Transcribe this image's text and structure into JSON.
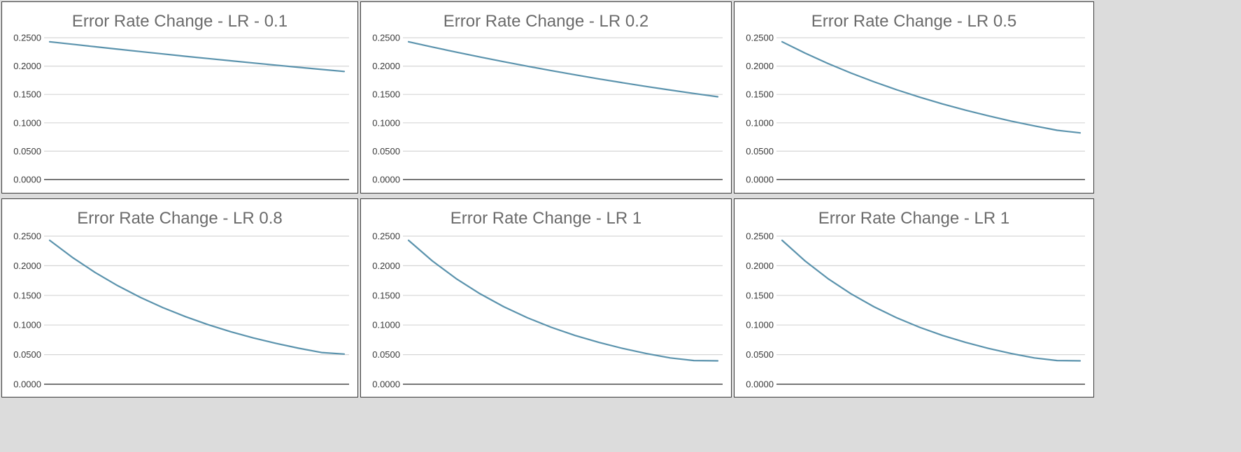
{
  "colors": {
    "series": "#5b93ad",
    "title": "#6b6b6b",
    "axis": "#4a4a4a",
    "grid": "#d6d6d6"
  },
  "chart_data": [
    {
      "type": "line",
      "title": "Error Rate Change - LR - 0.1",
      "xlabel": "",
      "ylabel": "",
      "ylim": [
        0,
        0.25
      ],
      "yticks": [
        "0.0000",
        "0.0500",
        "0.1000",
        "0.1500",
        "0.2000",
        "0.2500"
      ],
      "grid": true,
      "series": [
        {
          "values": [
            0.2429,
            0.2385,
            0.2341,
            0.2298,
            0.2256,
            0.2214,
            0.2173,
            0.2133,
            0.2093,
            0.2054,
            0.2016,
            0.1978,
            0.1941,
            0.1905
          ]
        }
      ]
    },
    {
      "type": "line",
      "title": "Error Rate Change - LR 0.2",
      "xlabel": "",
      "ylabel": "",
      "ylim": [
        0,
        0.25
      ],
      "yticks": [
        "0.0000",
        "0.0500",
        "0.1000",
        "0.1500",
        "0.2000",
        "0.2500"
      ],
      "grid": true,
      "series": [
        {
          "values": [
            0.2429,
            0.2336,
            0.2246,
            0.216,
            0.2077,
            0.1997,
            0.192,
            0.1846,
            0.1775,
            0.1707,
            0.1641,
            0.1578,
            0.1517,
            0.1459
          ]
        }
      ]
    },
    {
      "type": "line",
      "title": "Error Rate Change - LR 0.5",
      "xlabel": "",
      "ylabel": "",
      "ylim": [
        0,
        0.25
      ],
      "yticks": [
        "0.0000",
        "0.0500",
        "0.1000",
        "0.1500",
        "0.2000",
        "0.2500"
      ],
      "grid": true,
      "series": [
        {
          "values": [
            0.2429,
            0.2229,
            0.2046,
            0.1878,
            0.1724,
            0.1582,
            0.1452,
            0.1333,
            0.1223,
            0.1123,
            0.103,
            0.0946,
            0.0868,
            0.0823
          ]
        }
      ]
    },
    {
      "type": "line",
      "title": "Error Rate Change - LR 0.8",
      "xlabel": "",
      "ylabel": "",
      "ylim": [
        0,
        0.25
      ],
      "yticks": [
        "0.0000",
        "0.0500",
        "0.1000",
        "0.1500",
        "0.2000",
        "0.2500"
      ],
      "grid": true,
      "series": [
        {
          "values": [
            0.2429,
            0.2141,
            0.1888,
            0.1664,
            0.1467,
            0.1293,
            0.114,
            0.1005,
            0.0886,
            0.0781,
            0.0689,
            0.0607,
            0.0535,
            0.051
          ]
        }
      ]
    },
    {
      "type": "line",
      "title": "Error Rate Change - LR 1",
      "xlabel": "",
      "ylabel": "",
      "ylim": [
        0,
        0.25
      ],
      "yticks": [
        "0.0000",
        "0.0500",
        "0.1000",
        "0.1500",
        "0.2000",
        "0.2500"
      ],
      "grid": true,
      "series": [
        {
          "values": [
            0.2429,
            0.2081,
            0.1783,
            0.1528,
            0.1309,
            0.1122,
            0.0961,
            0.0823,
            0.0706,
            0.0605,
            0.0518,
            0.0444,
            0.04,
            0.0395
          ]
        }
      ]
    },
    {
      "type": "line",
      "title": "Error Rate Change - LR 1",
      "xlabel": "",
      "ylabel": "",
      "ylim": [
        0,
        0.25
      ],
      "yticks": [
        "0.0000",
        "0.0500",
        "0.1000",
        "0.1500",
        "0.2000",
        "0.2500"
      ],
      "grid": true,
      "series": [
        {
          "values": [
            0.2429,
            0.2081,
            0.1783,
            0.1528,
            0.1309,
            0.1122,
            0.0961,
            0.0823,
            0.0706,
            0.0605,
            0.0518,
            0.0444,
            0.04,
            0.0395
          ]
        }
      ]
    }
  ]
}
